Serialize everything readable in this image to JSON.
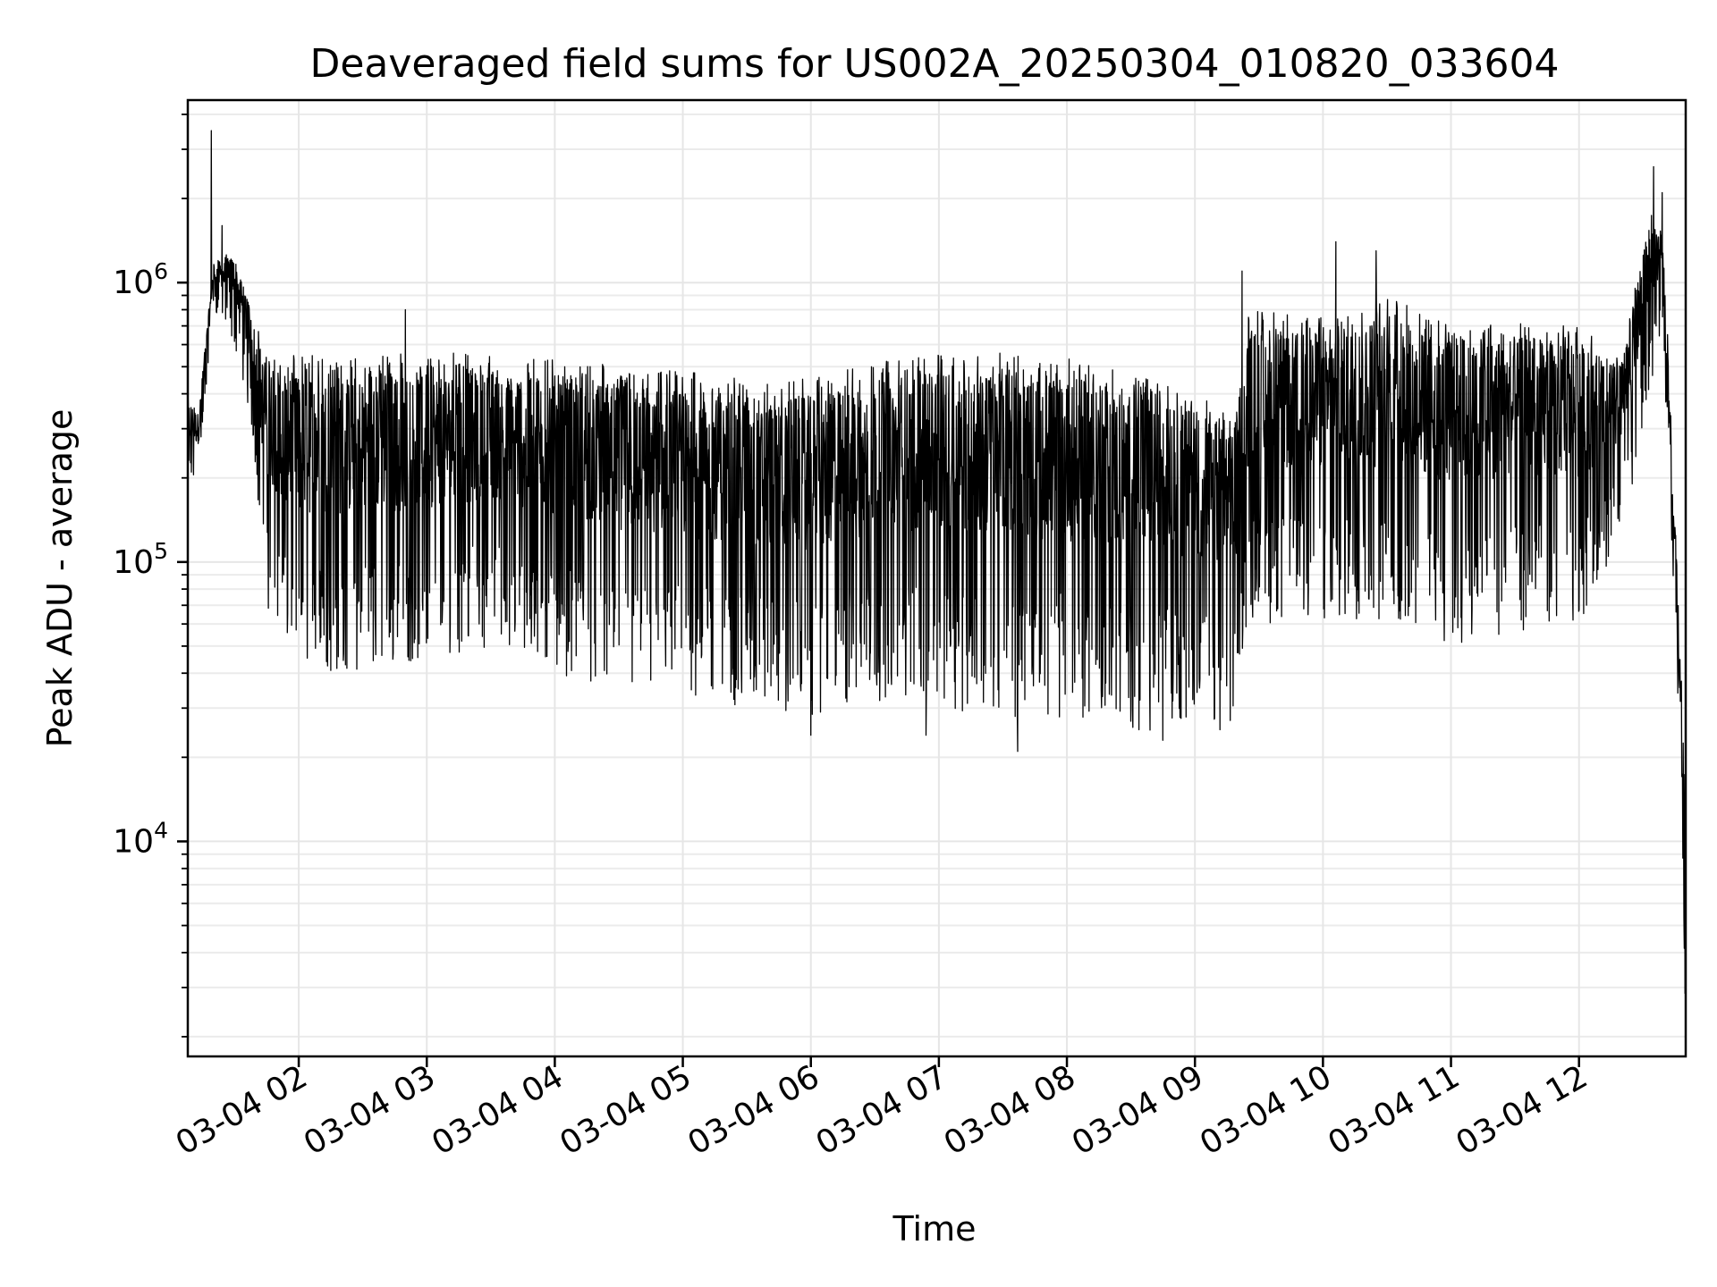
{
  "chart_data": {
    "type": "line",
    "title": "Deaveraged field sums for US002A_20250304_010820_033604",
    "xlabel": "Time",
    "ylabel": "Peak ADU - average",
    "yscale": "log",
    "grid": true,
    "line_color": "#000000",
    "xlim": [
      "2025-03-04 01:08",
      "2025-03-04 12:50"
    ],
    "ylim": [
      1700,
      4500000
    ],
    "x_ticks": [
      {
        "value": "2025-03-04 02:00",
        "label": "03-04 02"
      },
      {
        "value": "2025-03-04 03:00",
        "label": "03-04 03"
      },
      {
        "value": "2025-03-04 04:00",
        "label": "03-04 04"
      },
      {
        "value": "2025-03-04 05:00",
        "label": "03-04 05"
      },
      {
        "value": "2025-03-04 06:00",
        "label": "03-04 06"
      },
      {
        "value": "2025-03-04 07:00",
        "label": "03-04 07"
      },
      {
        "value": "2025-03-04 08:00",
        "label": "03-04 08"
      },
      {
        "value": "2025-03-04 09:00",
        "label": "03-04 09"
      },
      {
        "value": "2025-03-04 10:00",
        "label": "03-04 10"
      },
      {
        "value": "2025-03-04 11:00",
        "label": "03-04 11"
      },
      {
        "value": "2025-03-04 12:00",
        "label": "03-04 12"
      }
    ],
    "y_ticks": [
      {
        "value": 10000,
        "base": "10",
        "exp": "4"
      },
      {
        "value": 100000,
        "base": "10",
        "exp": "5"
      },
      {
        "value": 1000000,
        "base": "10",
        "exp": "6"
      }
    ],
    "envelope": [
      {
        "t": "2025-03-04 01:08",
        "low": 180000,
        "high": 400000
      },
      {
        "t": "2025-03-04 01:13",
        "low": 200000,
        "high": 350000
      },
      {
        "t": "2025-03-04 01:20",
        "low": 800000,
        "high": 1200000
      },
      {
        "t": "2025-03-04 01:30",
        "low": 600000,
        "high": 1300000
      },
      {
        "t": "2025-03-04 01:38",
        "low": 300000,
        "high": 800000
      },
      {
        "t": "2025-03-04 01:45",
        "low": 70000,
        "high": 550000
      },
      {
        "t": "2025-03-04 02:00",
        "low": 40000,
        "high": 550000
      },
      {
        "t": "2025-03-04 02:30",
        "low": 40000,
        "high": 550000
      },
      {
        "t": "2025-03-04 03:00",
        "low": 45000,
        "high": 560000
      },
      {
        "t": "2025-03-04 03:30",
        "low": 50000,
        "high": 560000
      },
      {
        "t": "2025-03-04 04:00",
        "low": 40000,
        "high": 540000
      },
      {
        "t": "2025-03-04 04:30",
        "low": 35000,
        "high": 500000
      },
      {
        "t": "2025-03-04 05:00",
        "low": 32000,
        "high": 480000
      },
      {
        "t": "2025-03-04 05:30",
        "low": 30000,
        "high": 460000
      },
      {
        "t": "2025-03-04 06:00",
        "low": 27000,
        "high": 460000
      },
      {
        "t": "2025-03-04 06:30",
        "low": 32000,
        "high": 520000
      },
      {
        "t": "2025-03-04 07:00",
        "low": 30000,
        "high": 560000
      },
      {
        "t": "2025-03-04 07:30",
        "low": 28000,
        "high": 560000
      },
      {
        "t": "2025-03-04 08:00",
        "low": 27000,
        "high": 540000
      },
      {
        "t": "2025-03-04 08:30",
        "low": 25000,
        "high": 480000
      },
      {
        "t": "2025-03-04 09:00",
        "low": 25000,
        "high": 400000
      },
      {
        "t": "2025-03-04 09:20",
        "low": 25000,
        "high": 350000
      },
      {
        "t": "2025-03-04 09:25",
        "low": 60000,
        "high": 800000
      },
      {
        "t": "2025-03-04 10:00",
        "low": 60000,
        "high": 750000
      },
      {
        "t": "2025-03-04 10:30",
        "low": 55000,
        "high": 900000
      },
      {
        "t": "2025-03-04 11:00",
        "low": 50000,
        "high": 700000
      },
      {
        "t": "2025-03-04 11:30",
        "low": 55000,
        "high": 750000
      },
      {
        "t": "2025-03-04 12:00",
        "low": 60000,
        "high": 700000
      },
      {
        "t": "2025-03-04 12:20",
        "low": 120000,
        "high": 550000
      },
      {
        "t": "2025-03-04 12:33",
        "low": 400000,
        "high": 1800000
      },
      {
        "t": "2025-03-04 12:39",
        "low": 700000,
        "high": 1500000
      },
      {
        "t": "2025-03-04 12:43",
        "low": 150000,
        "high": 400000
      },
      {
        "t": "2025-03-04 12:47",
        "low": 15000,
        "high": 60000
      },
      {
        "t": "2025-03-04 12:50",
        "low": 2300,
        "high": 15000
      }
    ],
    "peaks": [
      {
        "t": "2025-03-04 01:19",
        "value": 3500000
      },
      {
        "t": "2025-03-04 01:24",
        "value": 1600000
      },
      {
        "t": "2025-03-04 02:50",
        "value": 800000
      },
      {
        "t": "2025-03-04 09:22",
        "value": 1100000
      },
      {
        "t": "2025-03-04 10:06",
        "value": 1400000
      },
      {
        "t": "2025-03-04 10:25",
        "value": 1300000
      },
      {
        "t": "2025-03-04 12:35",
        "value": 2600000
      },
      {
        "t": "2025-03-04 12:39",
        "value": 2100000
      }
    ],
    "troughs": [
      {
        "t": "2025-03-04 07:37",
        "value": 21000
      },
      {
        "t": "2025-03-04 08:45",
        "value": 23000
      },
      {
        "t": "2025-03-04 06:00",
        "value": 24000
      },
      {
        "t": "2025-03-04 06:54",
        "value": 24000
      },
      {
        "t": "2025-03-04 12:50",
        "value": 2400
      }
    ]
  }
}
